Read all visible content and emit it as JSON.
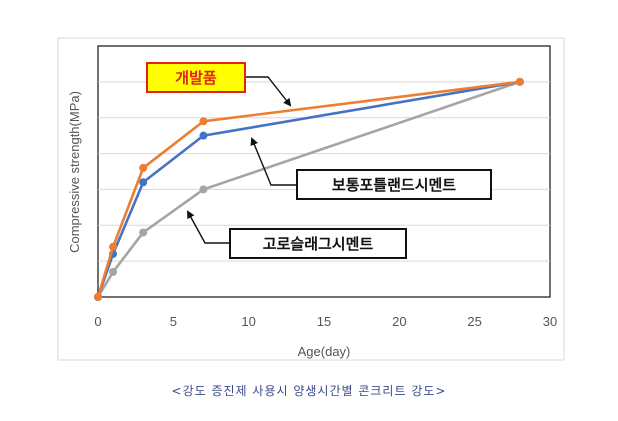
{
  "chart_data": {
    "type": "line",
    "xlabel": "Age(day)",
    "ylabel": "Compressive strength(MPa)",
    "xlim": [
      0,
      30
    ],
    "ylim": [
      0,
      7
    ],
    "x_ticks": [
      "0",
      "5",
      "10",
      "15",
      "20",
      "25",
      "30"
    ],
    "grid": "horizontal",
    "series": [
      {
        "name": "개발품",
        "color": "#ed7d31",
        "x": [
          0,
          1,
          3,
          7,
          28
        ],
        "y": [
          0,
          1.4,
          3.6,
          4.9,
          6.0
        ]
      },
      {
        "name": "보통포틀랜드시멘트",
        "color": "#4472c4",
        "x": [
          0,
          1,
          3,
          7,
          28
        ],
        "y": [
          0,
          1.2,
          3.2,
          4.5,
          6.0
        ]
      },
      {
        "name": "고로슬래그시멘트",
        "color": "#a5a5a5",
        "x": [
          0,
          1,
          3,
          7,
          28
        ],
        "y": [
          0,
          0.7,
          1.8,
          3.0,
          6.0
        ]
      }
    ],
    "annotations": [
      {
        "text": "개발품",
        "series": "개발품",
        "style": "red-on-yellow"
      },
      {
        "text": "보통포틀랜드시멘트",
        "series": "보통포틀랜드시멘트",
        "style": "boxed"
      },
      {
        "text": "고로슬래그시멘트",
        "series": "고로슬래그시멘트",
        "style": "boxed"
      }
    ]
  },
  "caption": "<강도 증진제 사용시 양생시간별 콘크리트 강도>"
}
